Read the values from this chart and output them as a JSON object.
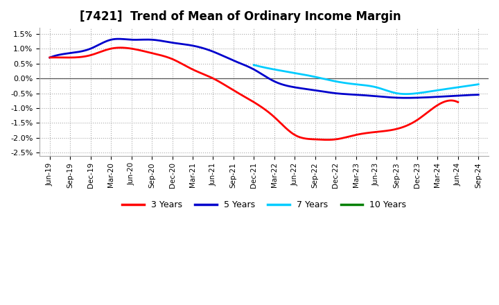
{
  "title": "[7421]  Trend of Mean of Ordinary Income Margin",
  "title_fontsize": 12,
  "background_color": "#ffffff",
  "plot_bg_color": "#ffffff",
  "ylim": [
    -0.026,
    0.017
  ],
  "yticks": [
    -0.025,
    -0.02,
    -0.015,
    -0.01,
    -0.005,
    0.0,
    0.005,
    0.01,
    0.015
  ],
  "grid_color": "#aaaaaa",
  "x_labels": [
    "Jun-19",
    "Sep-19",
    "Dec-19",
    "Mar-20",
    "Jun-20",
    "Sep-20",
    "Dec-20",
    "Mar-21",
    "Jun-21",
    "Sep-21",
    "Dec-21",
    "Mar-22",
    "Jun-22",
    "Sep-22",
    "Dec-22",
    "Mar-23",
    "Jun-23",
    "Sep-23",
    "Dec-23",
    "Mar-24",
    "Jun-24",
    "Sep-24"
  ],
  "y3_x": [
    0,
    1,
    2,
    3,
    4,
    5,
    6,
    7,
    8,
    9,
    10,
    11,
    12,
    13,
    14,
    15,
    16,
    17,
    18,
    19,
    20
  ],
  "y3_y": [
    0.007,
    0.007,
    0.0078,
    0.01,
    0.01,
    0.0085,
    0.0065,
    0.003,
    0.0,
    -0.004,
    -0.008,
    -0.013,
    -0.019,
    -0.0205,
    -0.0205,
    -0.019,
    -0.018,
    -0.017,
    -0.014,
    -0.009,
    -0.008
  ],
  "y5_x": [
    0,
    1,
    2,
    3,
    4,
    5,
    6,
    7,
    8,
    9,
    10,
    11,
    12,
    13,
    14,
    15,
    16,
    17,
    18,
    19,
    20,
    21
  ],
  "y5_y": [
    0.007,
    0.0085,
    0.01,
    0.013,
    0.013,
    0.013,
    0.012,
    0.011,
    0.009,
    0.006,
    0.003,
    -0.001,
    -0.003,
    -0.004,
    -0.005,
    -0.0055,
    -0.006,
    -0.0065,
    -0.0065,
    -0.0062,
    -0.0058,
    -0.0055
  ],
  "y7_x": [
    10,
    11,
    12,
    13,
    14,
    15,
    16,
    17,
    18,
    19,
    20,
    21
  ],
  "y7_y": [
    0.0045,
    0.003,
    0.0018,
    0.0005,
    -0.001,
    -0.002,
    -0.003,
    -0.005,
    -0.005,
    -0.004,
    -0.003,
    -0.002
  ],
  "line_width": 2.0,
  "color_3y": "#ff0000",
  "color_5y": "#0000cc",
  "color_7y": "#00ccff",
  "color_10y": "#008000"
}
